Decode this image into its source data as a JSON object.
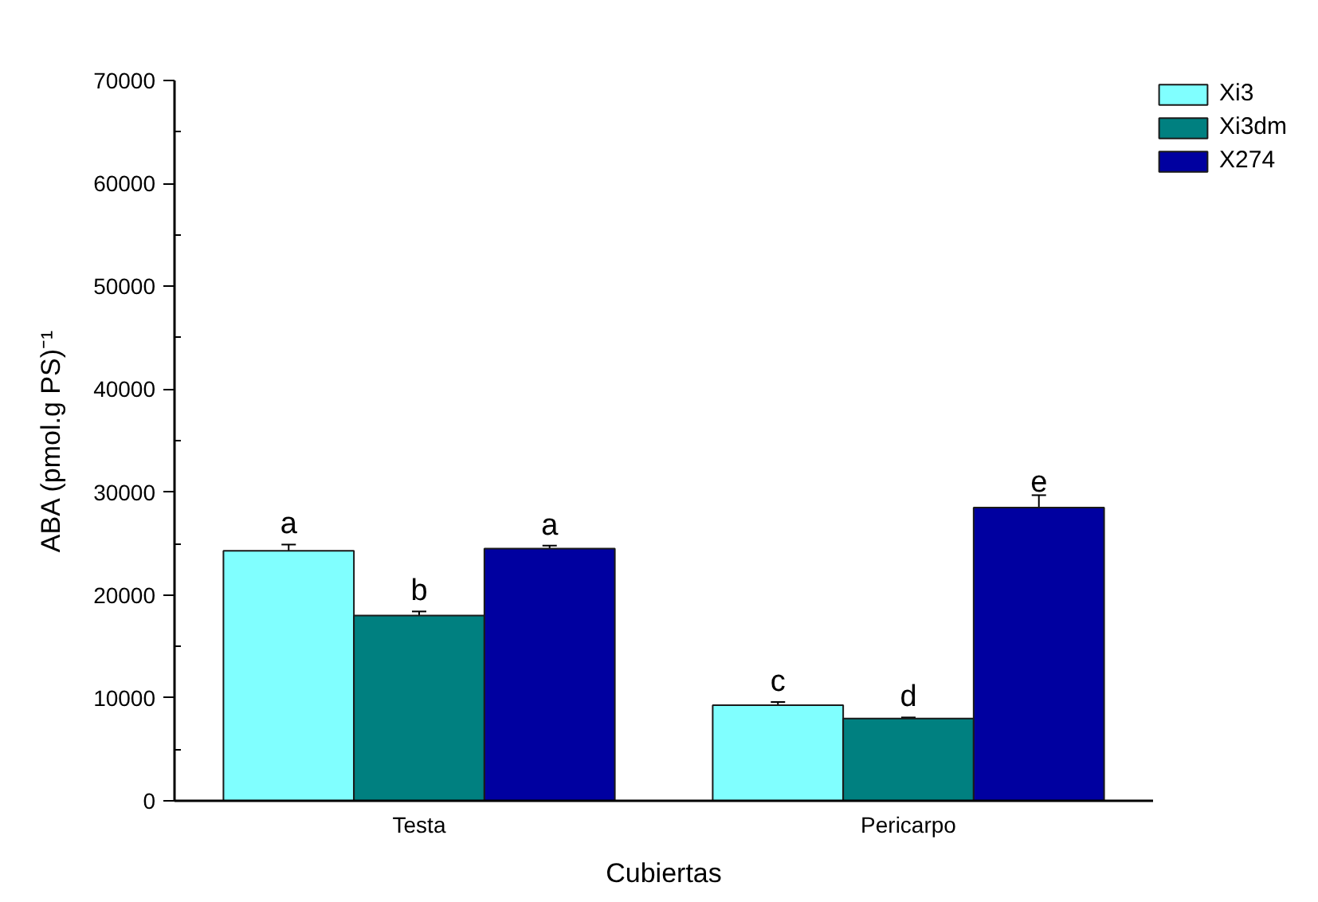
{
  "chart_data": {
    "type": "bar",
    "xlabel": "Cubiertas",
    "ylabel": "ABA (pmol.g PS)⁻¹",
    "categories": [
      "Testa",
      "Pericarpo"
    ],
    "series": [
      {
        "name": "Xi3",
        "color": "#80ffff",
        "values": [
          24300,
          9300
        ],
        "errors": [
          [
            24300,
            24900
          ],
          [
            9300,
            9600
          ]
        ],
        "value_labels": [
          "a",
          "c"
        ]
      },
      {
        "name": "Xi3dm",
        "color": "#008080",
        "values": [
          18000,
          8000
        ],
        "errors": [
          [
            18000,
            18400
          ],
          [
            8000,
            8100
          ]
        ],
        "value_labels": [
          "b",
          "d"
        ]
      },
      {
        "name": "X274",
        "color": "#0000a0",
        "values": [
          24500,
          28500
        ],
        "errors": [
          [
            24500,
            24800
          ],
          [
            28500,
            29700
          ]
        ],
        "value_labels": [
          "a",
          "e"
        ]
      }
    ],
    "ylim": [
      0,
      70000
    ],
    "yticks": [
      0,
      10000,
      20000,
      30000,
      40000,
      50000,
      60000,
      70000
    ],
    "legend": "top right"
  }
}
